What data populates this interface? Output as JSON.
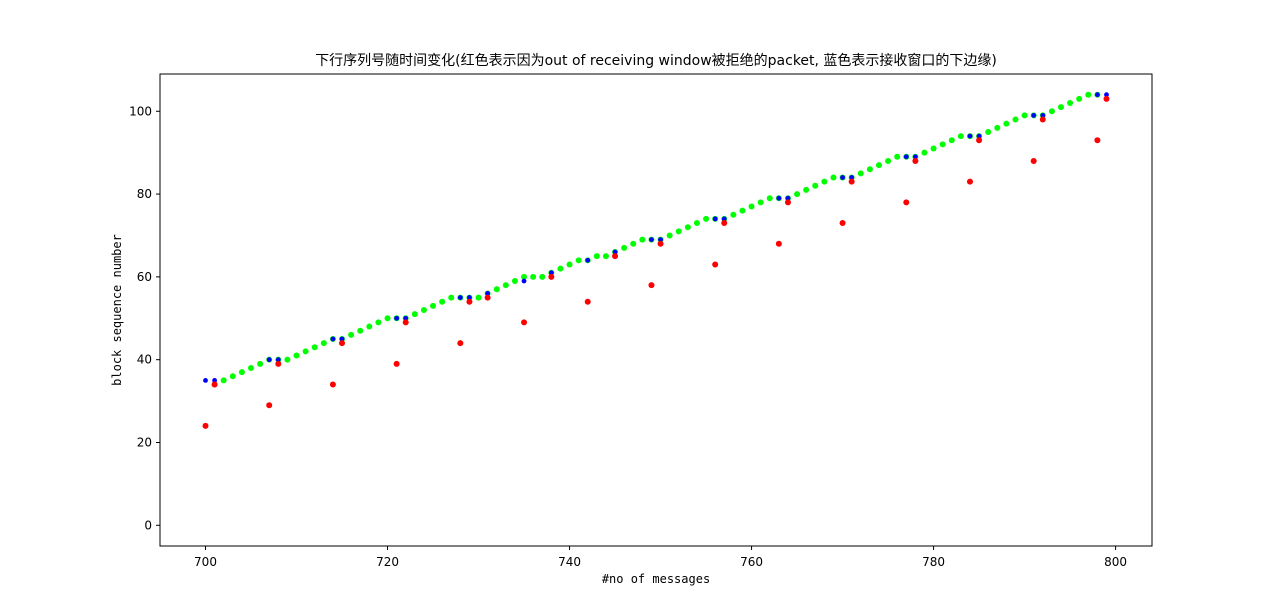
{
  "chart_data": {
    "type": "scatter",
    "title": "下行序列号随时间变化(红色表示因为out of receiving window被拒绝的packet, 蓝色表示接收窗口的下边缘)",
    "xlabel": "#no of messages",
    "ylabel": "block sequence number",
    "xlim": [
      695,
      804
    ],
    "ylim": [
      -5,
      109
    ],
    "xticks": [
      700,
      720,
      740,
      760,
      780,
      800
    ],
    "yticks": [
      0,
      20,
      40,
      60,
      80,
      100
    ],
    "grid": false,
    "legend": "none",
    "series": [
      {
        "color": "#00ff00",
        "marker_size": "medium",
        "x": [
          701,
          702,
          703,
          704,
          705,
          706,
          707,
          708,
          709,
          710,
          711,
          712,
          713,
          714,
          715,
          716,
          717,
          718,
          719,
          720,
          721,
          722,
          723,
          724,
          725,
          726,
          727,
          728,
          729,
          730,
          731,
          732,
          733,
          734,
          735,
          736,
          737,
          738,
          739,
          740,
          741,
          742,
          743,
          744,
          745,
          746,
          747,
          748,
          749,
          750,
          751,
          752,
          753,
          754,
          755,
          756,
          757,
          758,
          759,
          760,
          761,
          762,
          763,
          764,
          765,
          766,
          767,
          768,
          769,
          770,
          771,
          772,
          773,
          774,
          775,
          776,
          777,
          778,
          779,
          780,
          781,
          782,
          783,
          784,
          785,
          786,
          787,
          788,
          789,
          790,
          791,
          792,
          793,
          794,
          795,
          796,
          797,
          798
        ],
        "y": [
          34,
          35,
          36,
          37,
          38,
          39,
          40,
          40,
          40,
          41,
          42,
          43,
          44,
          45,
          45,
          46,
          47,
          48,
          49,
          50,
          50,
          50,
          51,
          52,
          53,
          54,
          55,
          55,
          55,
          55,
          56,
          57,
          58,
          59,
          60,
          60,
          60,
          61,
          62,
          63,
          64,
          64,
          65,
          65,
          66,
          67,
          68,
          69,
          69,
          69,
          70,
          71,
          72,
          73,
          74,
          74,
          74,
          75,
          76,
          77,
          78,
          79,
          79,
          79,
          80,
          81,
          82,
          83,
          84,
          84,
          84,
          85,
          86,
          87,
          88,
          89,
          89,
          89,
          90,
          91,
          92,
          93,
          94,
          94,
          94,
          95,
          96,
          97,
          98,
          99,
          99,
          99,
          100,
          101,
          102,
          103,
          104,
          104
        ]
      },
      {
        "color": "#0000ff",
        "marker_size": "small",
        "x": [
          700,
          701,
          707,
          708,
          714,
          715,
          721,
          722,
          728,
          729,
          731,
          735,
          738,
          742,
          745,
          749,
          750,
          756,
          757,
          763,
          764,
          770,
          771,
          777,
          778,
          784,
          785,
          791,
          792,
          798,
          799
        ],
        "y": [
          35,
          35,
          40,
          40,
          45,
          45,
          50,
          50,
          55,
          55,
          56,
          59,
          61,
          64,
          66,
          69,
          69,
          74,
          74,
          79,
          79,
          84,
          84,
          89,
          89,
          94,
          94,
          99,
          99,
          104,
          104
        ]
      },
      {
        "color": "#ff0000",
        "marker_size": "medium",
        "x": [
          700,
          701,
          707,
          708,
          714,
          715,
          721,
          722,
          728,
          729,
          731,
          735,
          738,
          742,
          745,
          749,
          750,
          756,
          757,
          763,
          764,
          770,
          771,
          777,
          778,
          784,
          785,
          791,
          792,
          798,
          799
        ],
        "y": [
          24,
          34,
          29,
          39,
          34,
          44,
          39,
          49,
          44,
          54,
          55,
          49,
          60,
          54,
          65,
          58,
          68,
          63,
          73,
          68,
          78,
          73,
          83,
          78,
          88,
          83,
          93,
          88,
          98,
          93,
          103
        ]
      }
    ]
  }
}
